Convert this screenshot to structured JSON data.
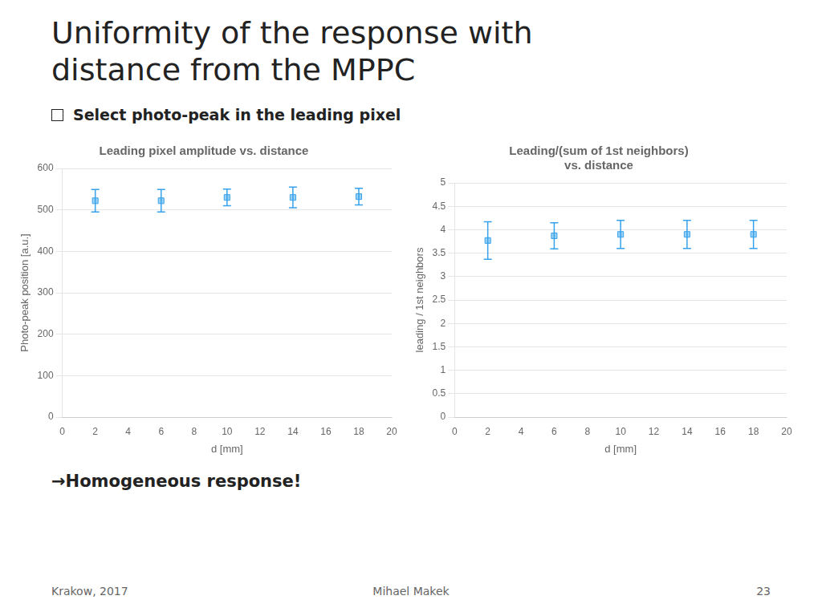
{
  "title": [
    "Uniformity of the response with",
    "distance from the MPPC"
  ],
  "subtitle": "Select photo-peak in the leading pixel",
  "annotations": [
    "Krakow, 2017",
    "Mihael Makek",
    "23"
  ],
  "chart_data": [
    {
      "type": "scatter",
      "title": "Leading pixel amplitude vs. distance",
      "x": [
        2,
        6,
        10,
        14,
        18
      ],
      "values": [
        522,
        522,
        530,
        530,
        532
      ],
      "yerr": [
        27,
        27,
        20,
        25,
        20
      ],
      "xlabel": "d [mm]",
      "ylabel": "Photo-peak position [a.u.]",
      "xlim": [
        0,
        20
      ],
      "ylim": [
        0,
        600
      ],
      "xticks": [
        0,
        2,
        4,
        6,
        8,
        10,
        12,
        14,
        16,
        18,
        20
      ],
      "yticks": [
        0,
        100,
        200,
        300,
        400,
        500,
        600
      ],
      "grid": "y",
      "marker": "square",
      "annotations": [
        "→Homogeneous response!"
      ]
    },
    {
      "type": "scatter",
      "title": [
        "Leading/(sum of 1st neighbors)",
        "vs. distance"
      ],
      "x": [
        2,
        6,
        10,
        14,
        18
      ],
      "values": [
        3.77,
        3.87,
        3.9,
        3.9,
        3.9
      ],
      "yerr": [
        0.4,
        0.28,
        0.3,
        0.3,
        0.3
      ],
      "xlabel": "d [mm]",
      "ylabel": "leading / 1st neighbors",
      "xlim": [
        0,
        20
      ],
      "ylim": [
        0,
        5
      ],
      "xticks": [
        0,
        2,
        4,
        6,
        8,
        10,
        12,
        14,
        16,
        18,
        20
      ],
      "yticks": [
        0,
        0.5,
        1,
        1.5,
        2,
        2.5,
        3,
        3.5,
        4,
        4.5,
        5
      ],
      "grid": "y",
      "marker": "square"
    }
  ]
}
